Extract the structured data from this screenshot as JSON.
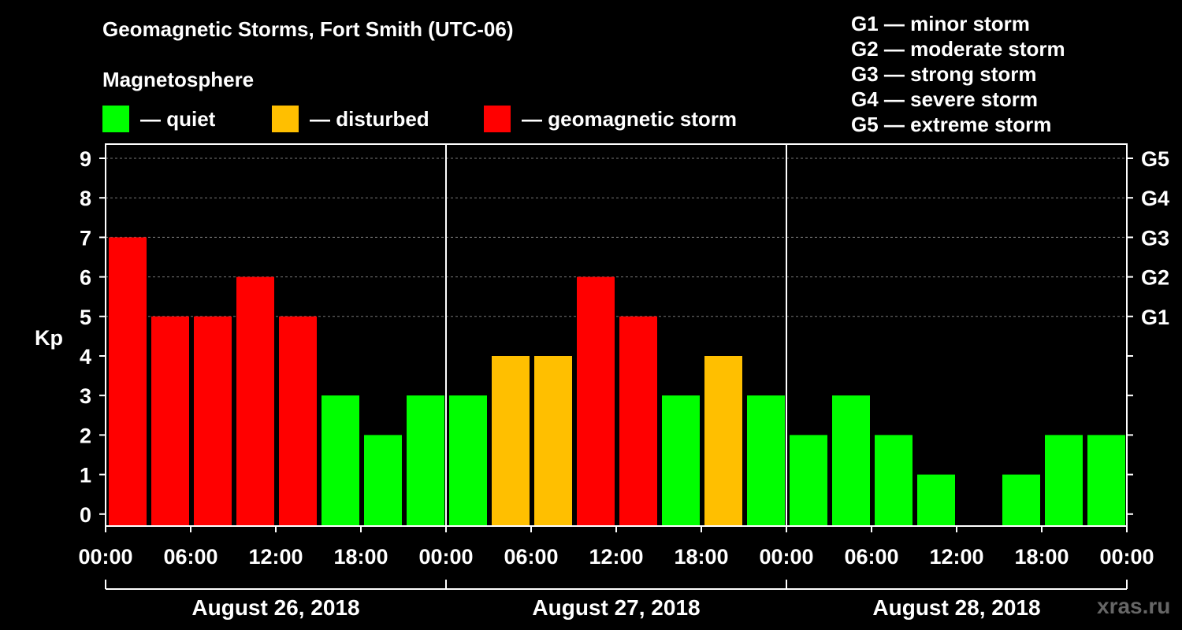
{
  "title": "Geomagnetic Storms, Fort Smith (UTC-06)",
  "legend": {
    "heading": "Magnetosphere",
    "items": [
      {
        "label": "— quiet",
        "color": "#00ff00"
      },
      {
        "label": "— disturbed",
        "color": "#ffbf00"
      },
      {
        "label": "— geomagnetic storm",
        "color": "#ff0000"
      }
    ]
  },
  "storm_scale": [
    "G1 — minor storm",
    "G2 — moderate storm",
    "G3 — strong storm",
    "G4 — severe storm",
    "G5 — extreme storm"
  ],
  "watermark": "xras.ru",
  "chart_data": {
    "type": "bar",
    "title": "Geomagnetic Storms, Fort Smith (UTC-06)",
    "ylabel": "Kp",
    "ylim": [
      0,
      9
    ],
    "y_ticks": [
      "0",
      "1",
      "2",
      "3",
      "4",
      "5",
      "6",
      "7",
      "8",
      "9"
    ],
    "right_ticks": [
      {
        "value": 5,
        "label": "G1"
      },
      {
        "value": 6,
        "label": "G2"
      },
      {
        "value": 7,
        "label": "G3"
      },
      {
        "value": 8,
        "label": "G4"
      },
      {
        "value": 9,
        "label": "G5"
      }
    ],
    "x_tick_labels": [
      "00:00",
      "06:00",
      "12:00",
      "18:00",
      "00:00",
      "06:00",
      "12:00",
      "18:00",
      "00:00",
      "06:00",
      "12:00",
      "18:00",
      "00:00"
    ],
    "days": [
      "August 26, 2018",
      "August 27, 2018",
      "August 28, 2018"
    ],
    "interval_hours": 3,
    "values": [
      7,
      5,
      5,
      6,
      5,
      3,
      2,
      3,
      3,
      4,
      4,
      6,
      5,
      3,
      4,
      3,
      2,
      3,
      2,
      1,
      0,
      1,
      2,
      2
    ],
    "colors": {
      "quiet": "#00ff00",
      "disturbed": "#ffbf00",
      "storm": "#ff0000"
    }
  }
}
